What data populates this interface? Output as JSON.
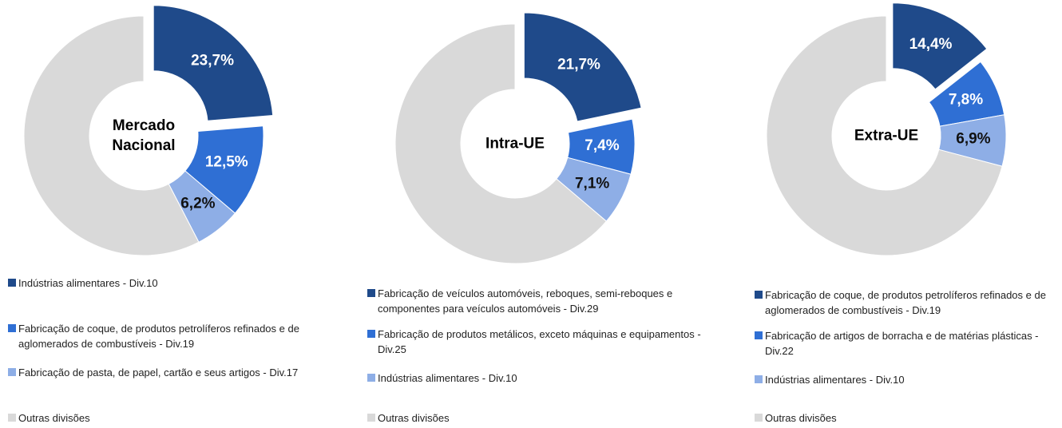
{
  "chart_data": [
    {
      "type": "donut",
      "center_label": "Mercado Nacional",
      "categories": [
        "Indústrias alimentares - Div.10",
        "Fabricação de coque, de produtos petrolíferos refinados e de aglomerados de combustíveis - Div.19",
        "Fabricação de pasta, de papel, cartão e seus artigos - Div.17",
        "Outras divisões"
      ],
      "values": [
        23.7,
        12.5,
        6.2,
        57.6
      ],
      "value_labels": [
        "23,7%",
        "12,5%",
        "6,2%",
        null
      ],
      "colors": [
        "#1f4a8a",
        "#2f6fd4",
        "#8eaee6",
        "#d9d9d9"
      ]
    },
    {
      "type": "donut",
      "center_label": "Intra-UE",
      "categories": [
        "Fabricação de veículos automóveis, reboques, semi-reboques e componentes para veículos automóveis - Div.29",
        "Fabricação de produtos metálicos, exceto máquinas e equipamentos - Div.25",
        "Indústrias alimentares - Div.10",
        "Outras divisões"
      ],
      "values": [
        21.7,
        7.4,
        7.1,
        63.8
      ],
      "value_labels": [
        "21,7%",
        "7,4%",
        "7,1%",
        null
      ],
      "colors": [
        "#1f4a8a",
        "#2f6fd4",
        "#8eaee6",
        "#d9d9d9"
      ]
    },
    {
      "type": "donut",
      "center_label": "Extra-UE",
      "categories": [
        "Fabricação de coque, de produtos petrolíferos refinados e de aglomerados de combustíveis - Div.19",
        "Fabricação de artigos de borracha e de matérias plásticas - Div.22",
        "Indústrias alimentares - Div.10",
        "Outras divisões"
      ],
      "values": [
        14.4,
        7.8,
        6.9,
        70.9
      ],
      "value_labels": [
        "14,4%",
        "7,8%",
        "6,9%",
        null
      ],
      "colors": [
        "#1f4a8a",
        "#2f6fd4",
        "#8eaee6",
        "#d9d9d9"
      ]
    }
  ]
}
